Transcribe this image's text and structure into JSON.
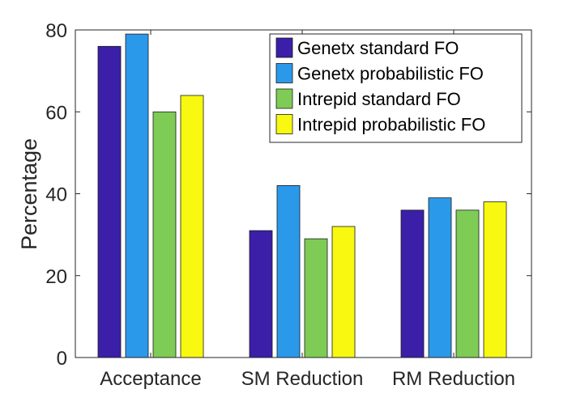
{
  "chart_data": {
    "type": "bar",
    "title": "",
    "xlabel": "",
    "ylabel": "Percentage",
    "ylim": [
      0,
      80
    ],
    "yticks": [
      0,
      20,
      40,
      60,
      80
    ],
    "grid": false,
    "legend_position": "top-right",
    "categories": [
      "Acceptance",
      "SM Reduction",
      "RM Reduction"
    ],
    "series": [
      {
        "name": "Genetx standard FO",
        "color": "#3b1fa8",
        "values": [
          76,
          31,
          36
        ]
      },
      {
        "name": "Genetx probabilistic FO",
        "color": "#2b99ea",
        "values": [
          79,
          42,
          39
        ]
      },
      {
        "name": "Intrepid standard FO",
        "color": "#7ecb55",
        "values": [
          60,
          29,
          36
        ]
      },
      {
        "name": "Intrepid probabilistic FO",
        "color": "#f8f810",
        "values": [
          64,
          32,
          38
        ]
      }
    ]
  }
}
